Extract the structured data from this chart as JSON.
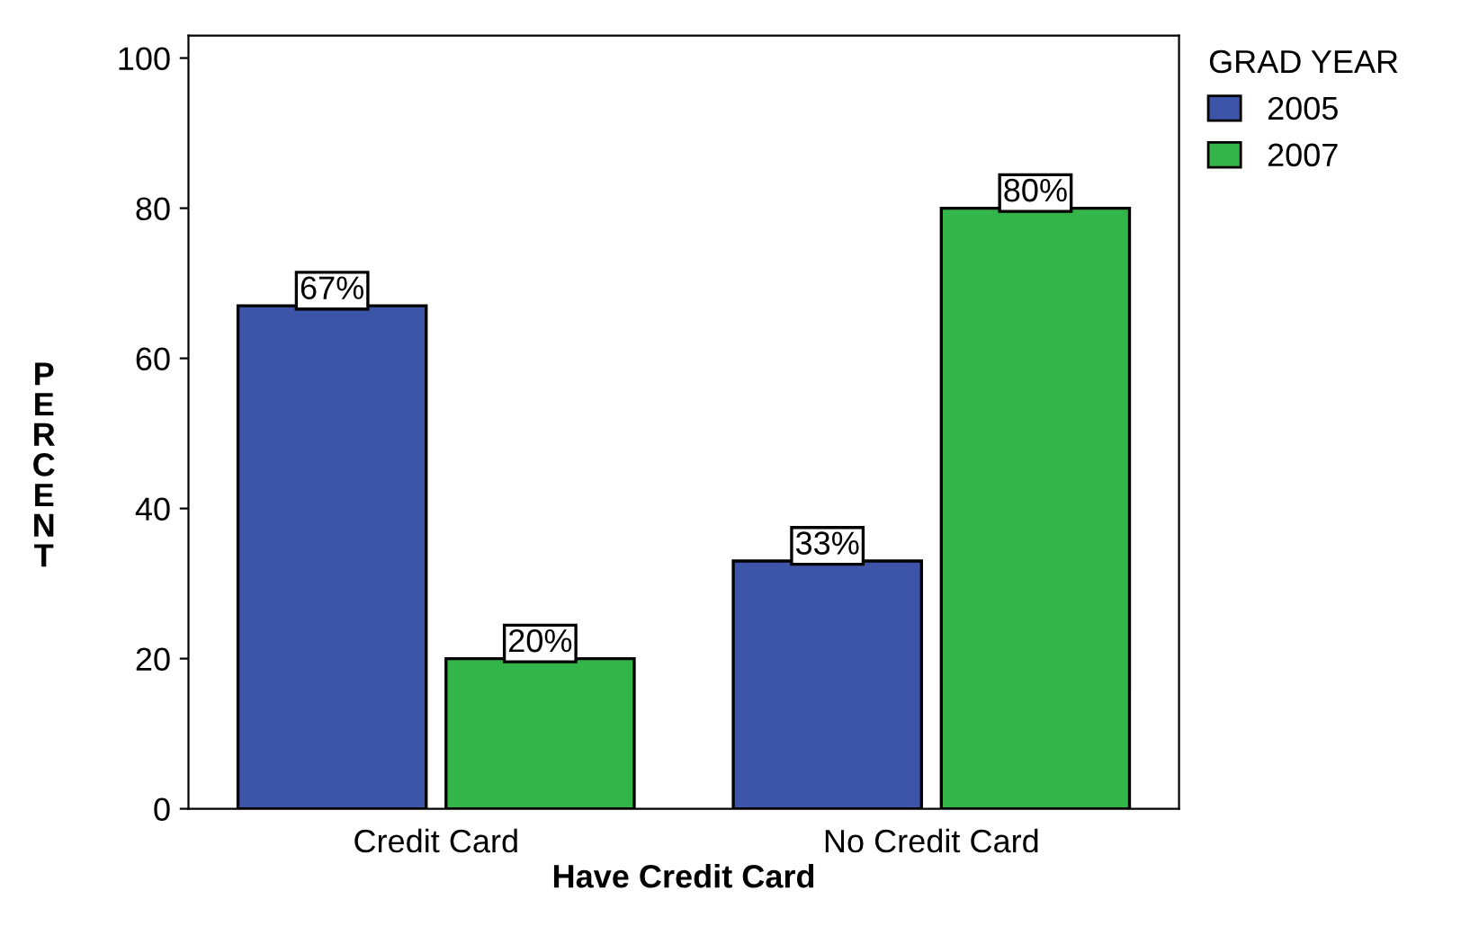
{
  "chart_data": {
    "type": "bar",
    "xlabel": "Have Credit Card",
    "ylabel": "PERCENT",
    "legend_title": "GRAD YEAR",
    "legend": "top right",
    "categories": [
      "Credit Card",
      "No Credit Card"
    ],
    "series": [
      {
        "name": "2005",
        "color": "#3d55a8",
        "values": [
          67,
          33
        ],
        "value_labels": [
          "67%",
          "33%"
        ]
      },
      {
        "name": "2007",
        "color": "#33b54a",
        "values": [
          20,
          80
        ],
        "value_labels": [
          "20%",
          "80%"
        ]
      }
    ],
    "ylim": [
      0,
      103
    ],
    "yticks": [
      0,
      20,
      40,
      60,
      80,
      100
    ],
    "grid": false
  }
}
